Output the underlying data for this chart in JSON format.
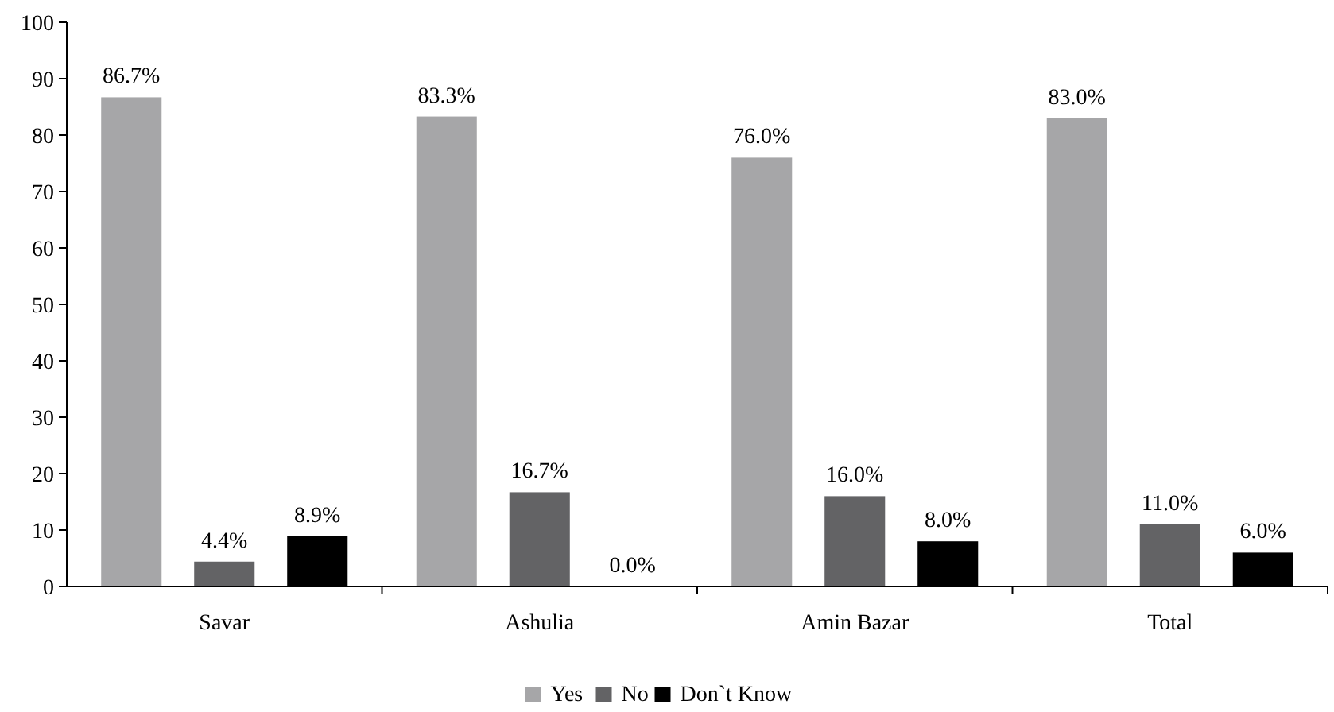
{
  "chart_data": {
    "type": "bar",
    "categories": [
      "Savar",
      "Ashulia",
      "Amin Bazar",
      "Total"
    ],
    "series": [
      {
        "name": "Yes",
        "color": "#a6a6a8",
        "values": [
          86.7,
          83.3,
          76.0,
          83.0
        ]
      },
      {
        "name": "No",
        "color": "#636365",
        "values": [
          4.4,
          16.7,
          16.0,
          11.0
        ]
      },
      {
        "name": "Don`t Know",
        "color": "#000000",
        "values": [
          8.9,
          0.0,
          8.0,
          6.0
        ]
      }
    ],
    "value_labels": [
      [
        "86.7%",
        "83.3%",
        "76.0%",
        "83.0%"
      ],
      [
        "4.4%",
        "16.7%",
        "16.0%",
        "11.0%"
      ],
      [
        "8.9%",
        "0.0%",
        "8.0%",
        "6.0%"
      ]
    ],
    "ylim": [
      0,
      100
    ],
    "yticks": [
      0,
      10,
      20,
      30,
      40,
      50,
      60,
      70,
      80,
      90,
      100
    ],
    "grid": false,
    "legend": "bottom"
  }
}
